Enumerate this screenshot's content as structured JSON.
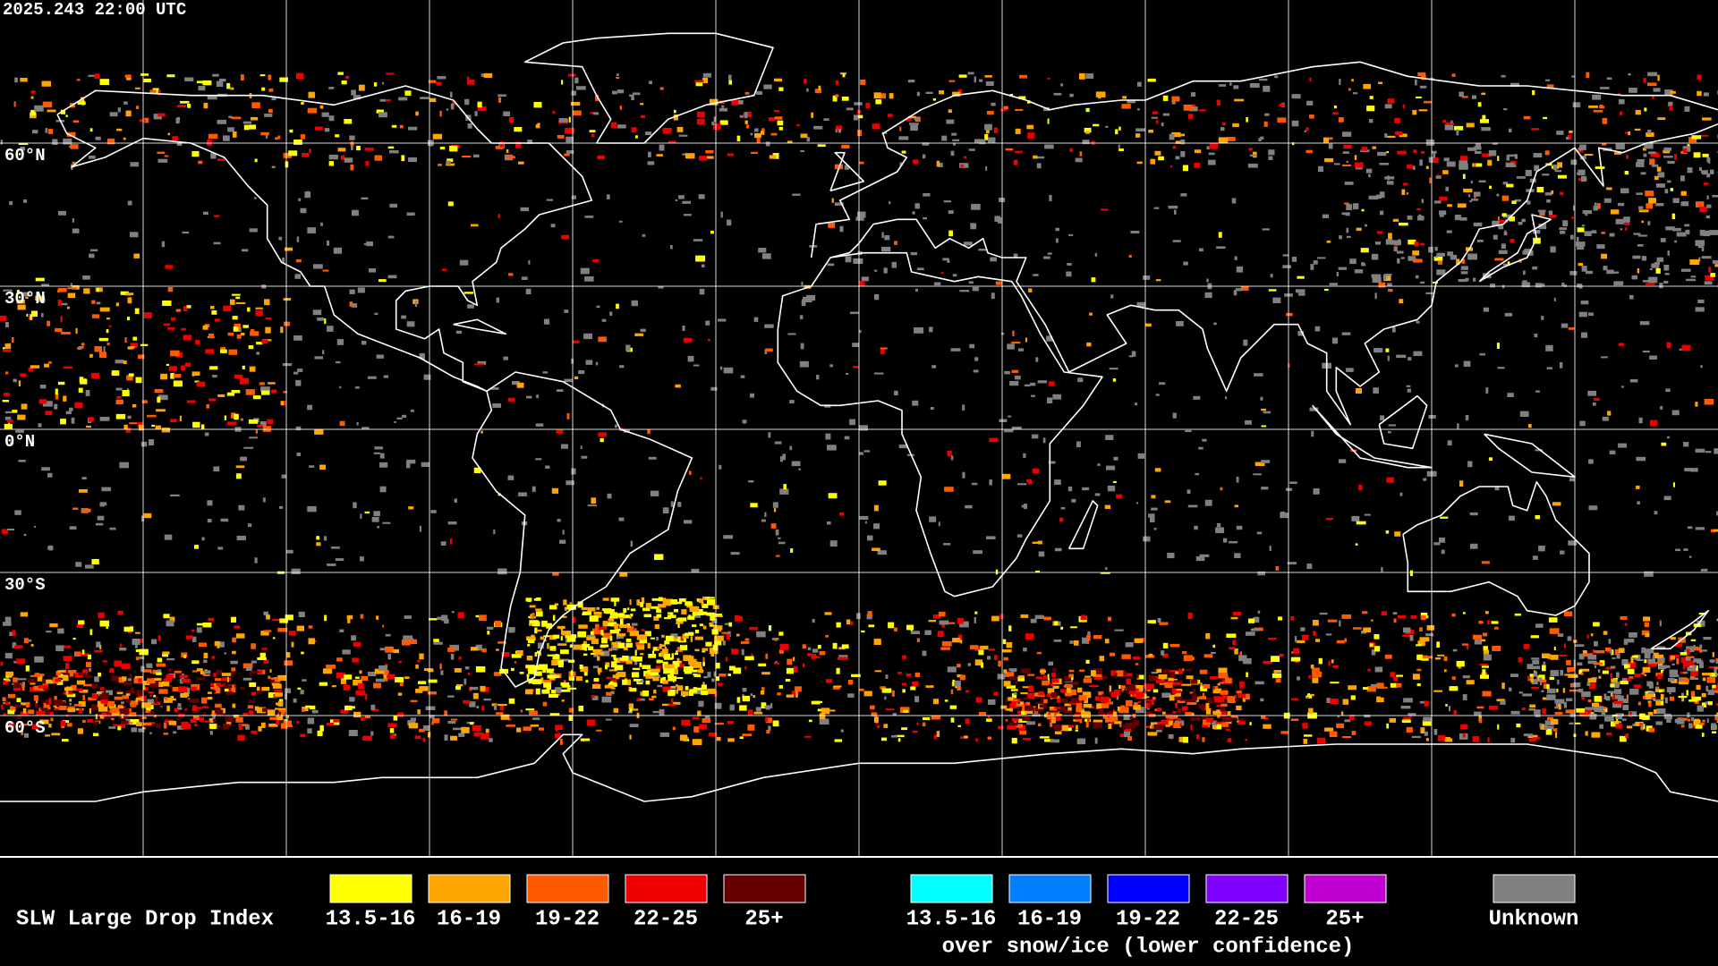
{
  "header": {
    "timestamp": "2025.243 22:00 UTC"
  },
  "map": {
    "latitude_labels": [
      "60°N",
      "30°N",
      "0°N",
      "30°S",
      "60°S"
    ]
  },
  "legend": {
    "title": "SLW Large Drop Index",
    "liquid": [
      {
        "label": "13.5-16",
        "color": "#ffff00"
      },
      {
        "label": "16-19",
        "color": "#ffa500"
      },
      {
        "label": "19-22",
        "color": "#ff5a00"
      },
      {
        "label": "22-25",
        "color": "#ee0000"
      },
      {
        "label": "25+",
        "color": "#660000"
      }
    ],
    "snow_ice": [
      {
        "label": "13.5-16",
        "color": "#00ffff"
      },
      {
        "label": "16-19",
        "color": "#0080ff"
      },
      {
        "label": "19-22",
        "color": "#0000ff"
      },
      {
        "label": "22-25",
        "color": "#8000ff"
      },
      {
        "label": "25+",
        "color": "#c000d0"
      }
    ],
    "snow_ice_note": "over snow/ice (lower confidence)",
    "unknown": {
      "label": "Unknown",
      "color": "#808080"
    }
  }
}
